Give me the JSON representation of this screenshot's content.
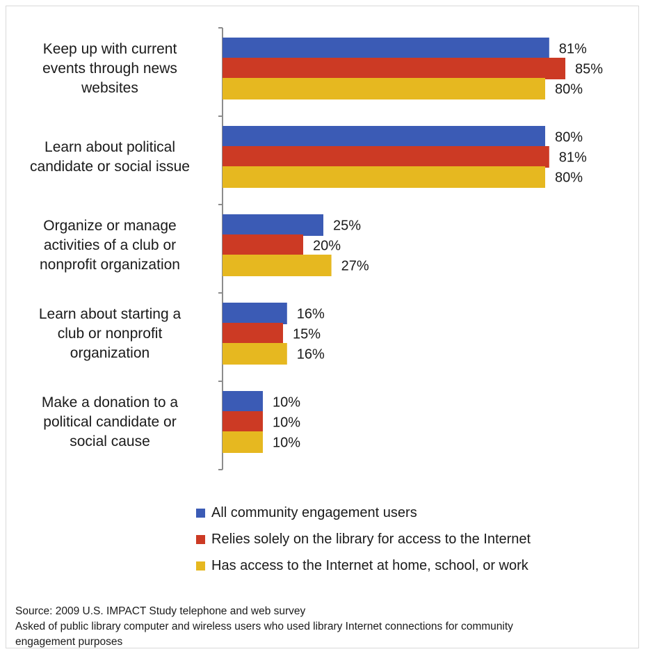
{
  "chart_data": {
    "type": "bar",
    "orientation": "horizontal",
    "categories": [
      [
        "Keep up with current",
        "events through news",
        "websites"
      ],
      [
        "Learn about political",
        "candidate or social issue"
      ],
      [
        "Organize or manage",
        "activities of a club or",
        "nonprofit organization"
      ],
      [
        "Learn about starting  a",
        "club or nonprofit",
        "organization"
      ],
      [
        "Make a donation to a",
        "political candidate or",
        "social cause"
      ]
    ],
    "series": [
      {
        "name": "All community engagement users",
        "color": "#3b5bb5",
        "values": [
          81,
          80,
          25,
          16,
          10
        ]
      },
      {
        "name": "Relies solely on the library for access to the Internet",
        "color": "#cc3a24",
        "values": [
          85,
          81,
          20,
          15,
          10
        ]
      },
      {
        "name": "Has access to the Internet at home, school, or work",
        "color": "#e6b820",
        "values": [
          80,
          80,
          27,
          16,
          10
        ]
      }
    ],
    "value_suffix": "%",
    "xlim": [
      0,
      90
    ],
    "grid": false,
    "legend_position": "bottom",
    "title": "",
    "xlabel": "",
    "ylabel": ""
  },
  "source_note": {
    "line1": "Source: 2009 U.S. IMPACT Study telephone and web survey",
    "line2": "Asked of public library computer and wireless users who used library Internet connections for community",
    "line3": "engagement purposes"
  }
}
